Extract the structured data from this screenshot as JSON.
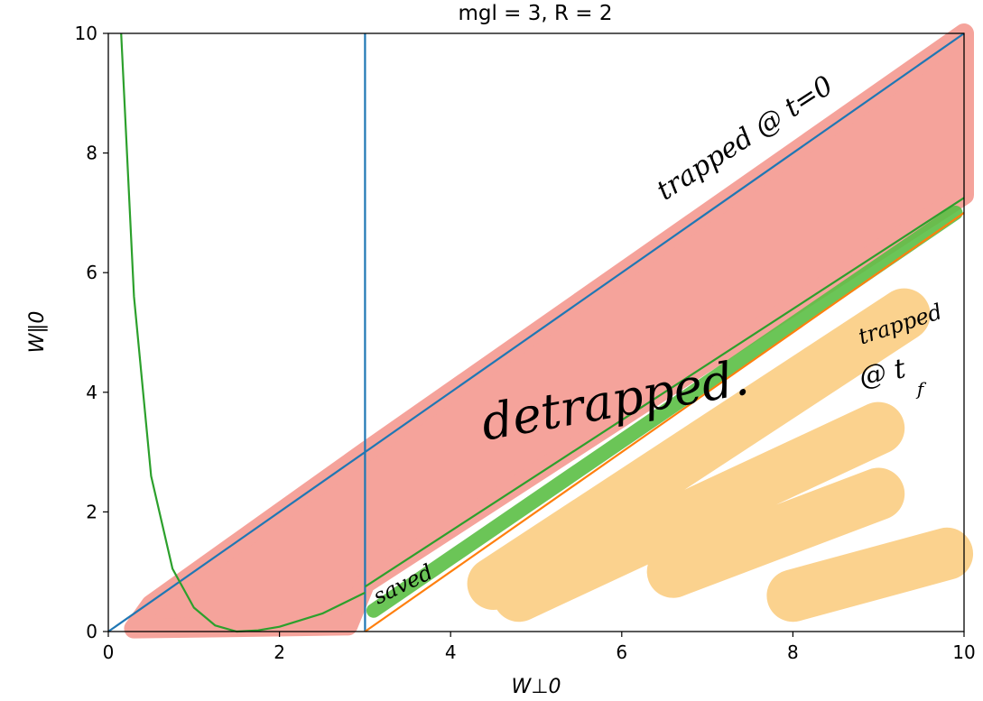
{
  "chart_data": {
    "type": "line",
    "title": "mgl = 3, R = 2",
    "xlabel": "W⊥0",
    "ylabel": "W∥0",
    "xlim": [
      0,
      10
    ],
    "ylim": [
      0,
      10
    ],
    "x_ticks": [
      "0",
      "2",
      "4",
      "6",
      "8",
      "10"
    ],
    "y_ticks": [
      "0",
      "2",
      "4",
      "6",
      "8",
      "10"
    ],
    "grid": false,
    "colors": {
      "blue": "#1f77b4",
      "orange": "#ff7f0e",
      "green": "#2ca02c",
      "detrapped_fill": "#f5a39b",
      "trapped_fill": "#fbd28e",
      "saved_fill": "#5bbf45"
    },
    "series": [
      {
        "color": "#1f77b4",
        "x": [
          0,
          10
        ],
        "y": [
          0,
          10
        ]
      },
      {
        "color": "#1f77b4",
        "x": [
          3,
          3
        ],
        "y": [
          0,
          10
        ]
      },
      {
        "color": "#ff7f0e",
        "x": [
          3,
          10
        ],
        "y": [
          0,
          7
        ]
      },
      {
        "color": "#2ca02c",
        "x": [
          3,
          10
        ],
        "y": [
          0.75,
          7.25
        ]
      },
      {
        "color": "#2ca02c",
        "function": "3*(1/sqrt(x) - 1/sqrt(1.5))^2 style curve",
        "x": [
          0.15,
          0.3,
          0.5,
          0.75,
          1.0,
          1.25,
          1.5,
          1.75,
          2.0,
          2.5,
          3.0
        ],
        "y": [
          10,
          5.6,
          2.6,
          1.05,
          0.4,
          0.1,
          0.0,
          0.02,
          0.08,
          0.3,
          0.65
        ]
      }
    ],
    "regions": [
      {
        "label": "detrapped",
        "color": "#f5a39b"
      },
      {
        "label": "saved",
        "color": "#5bbf45"
      },
      {
        "label": "trapped @ t_f",
        "color": "#fbd28e"
      }
    ],
    "annotations": [
      {
        "text": "trapped @ t=0",
        "x": 6.5,
        "y": 7.2
      },
      {
        "text": "detrapped.",
        "x": 4.4,
        "y": 3.2
      },
      {
        "text": "saved",
        "x": 3.15,
        "y": 0.45
      },
      {
        "text": "trapped",
        "x": 8.8,
        "y": 4.8
      },
      {
        "text": "@ t",
        "x": 8.8,
        "y": 4.1
      },
      {
        "text": "f",
        "x": 9.45,
        "y": 3.95
      }
    ]
  }
}
